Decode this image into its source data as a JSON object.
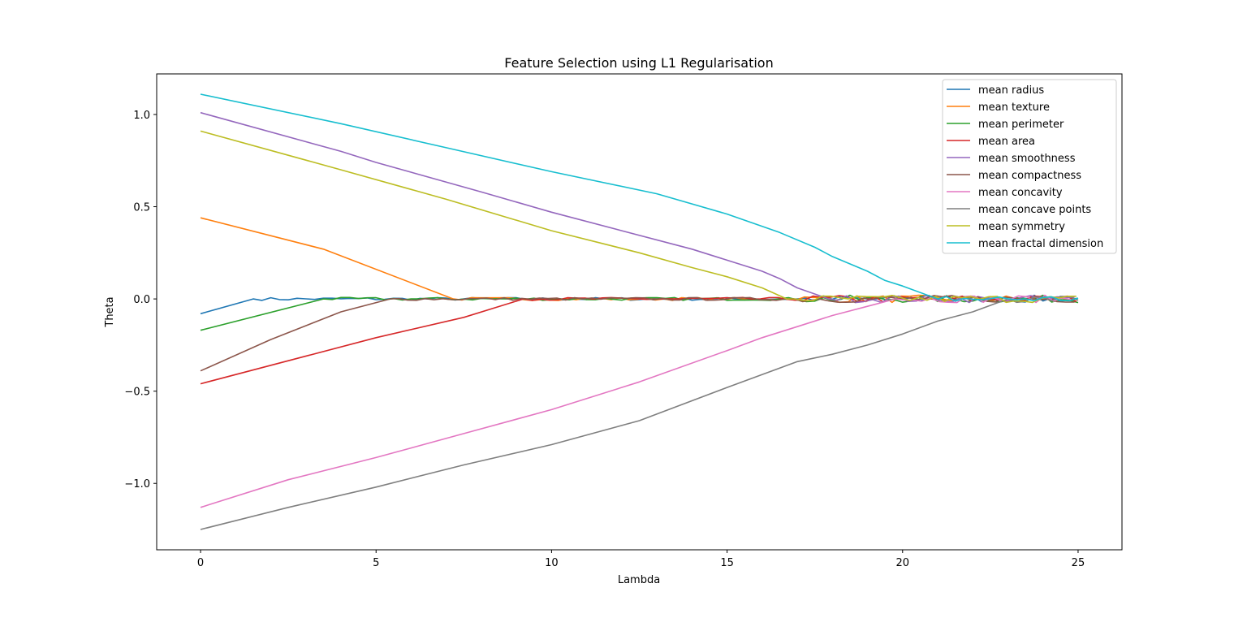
{
  "chart_data": {
    "type": "line",
    "title": "Feature Selection using L1 Regularisation",
    "xlabel": "Lambda",
    "ylabel": "Theta",
    "xlim": [
      -1.25,
      26.25
    ],
    "ylim": [
      -1.36,
      1.22
    ],
    "xticks": [
      0,
      5,
      10,
      15,
      20,
      25
    ],
    "yticks": [
      -1.0,
      -0.5,
      0.0,
      0.5,
      1.0
    ],
    "ytick_labels": [
      "−1.0",
      "−0.5",
      "0.0",
      "0.5",
      "1.0"
    ],
    "grid": false,
    "legend_position": "top-right",
    "noise_start": [
      1.5,
      7.2,
      3.5,
      9.2,
      17.9,
      5.4,
      19.8,
      23.0,
      16.7,
      21.0
    ],
    "series": [
      {
        "name": "mean radius",
        "color": "#1f77b4",
        "points": [
          [
            0,
            -0.08
          ],
          [
            1.5,
            0.0
          ]
        ]
      },
      {
        "name": "mean texture",
        "color": "#ff7f0e",
        "points": [
          [
            0,
            0.44
          ],
          [
            3.5,
            0.27
          ],
          [
            7.2,
            0.0
          ]
        ]
      },
      {
        "name": "mean perimeter",
        "color": "#2ca02c",
        "points": [
          [
            0,
            -0.17
          ],
          [
            3.5,
            0.0
          ]
        ]
      },
      {
        "name": "mean area",
        "color": "#d62728",
        "points": [
          [
            0,
            -0.46
          ],
          [
            5,
            -0.21
          ],
          [
            7.5,
            -0.1
          ],
          [
            9.2,
            0.0
          ]
        ]
      },
      {
        "name": "mean smoothness",
        "color": "#9467bd",
        "points": [
          [
            0,
            1.01
          ],
          [
            4,
            0.8
          ],
          [
            5,
            0.74
          ],
          [
            8,
            0.58
          ],
          [
            10,
            0.47
          ],
          [
            12,
            0.37
          ],
          [
            14,
            0.27
          ],
          [
            15,
            0.21
          ],
          [
            16,
            0.15
          ],
          [
            16.5,
            0.11
          ],
          [
            17,
            0.06
          ],
          [
            17.9,
            0.0
          ]
        ]
      },
      {
        "name": "mean compactness",
        "color": "#8c564b",
        "points": [
          [
            0,
            -0.39
          ],
          [
            2,
            -0.22
          ],
          [
            4,
            -0.07
          ],
          [
            5.4,
            0.0
          ]
        ]
      },
      {
        "name": "mean concavity",
        "color": "#e377c2",
        "points": [
          [
            0,
            -1.13
          ],
          [
            2.5,
            -0.98
          ],
          [
            5,
            -0.86
          ],
          [
            7.5,
            -0.73
          ],
          [
            10,
            -0.6
          ],
          [
            12.5,
            -0.45
          ],
          [
            15,
            -0.28
          ],
          [
            16,
            -0.21
          ],
          [
            17,
            -0.15
          ],
          [
            18,
            -0.09
          ],
          [
            19,
            -0.04
          ],
          [
            19.8,
            0.0
          ]
        ]
      },
      {
        "name": "mean concave points",
        "color": "#7f7f7f",
        "points": [
          [
            0,
            -1.25
          ],
          [
            2.5,
            -1.13
          ],
          [
            5,
            -1.02
          ],
          [
            7.5,
            -0.9
          ],
          [
            10,
            -0.79
          ],
          [
            12.5,
            -0.66
          ],
          [
            15,
            -0.48
          ],
          [
            17,
            -0.34
          ],
          [
            18,
            -0.3
          ],
          [
            19,
            -0.25
          ],
          [
            20,
            -0.19
          ],
          [
            21,
            -0.12
          ],
          [
            22,
            -0.07
          ],
          [
            23,
            0.0
          ]
        ]
      },
      {
        "name": "mean symmetry",
        "color": "#bcbd22",
        "points": [
          [
            0,
            0.91
          ],
          [
            4,
            0.7
          ],
          [
            7,
            0.54
          ],
          [
            10,
            0.37
          ],
          [
            12.5,
            0.25
          ],
          [
            14,
            0.17
          ],
          [
            15,
            0.12
          ],
          [
            16,
            0.06
          ],
          [
            16.7,
            0.0
          ]
        ]
      },
      {
        "name": "mean fractal dimension",
        "color": "#17becf",
        "points": [
          [
            0,
            1.11
          ],
          [
            4,
            0.95
          ],
          [
            7,
            0.82
          ],
          [
            10,
            0.69
          ],
          [
            13,
            0.57
          ],
          [
            15,
            0.46
          ],
          [
            16.5,
            0.36
          ],
          [
            17.5,
            0.28
          ],
          [
            18,
            0.23
          ],
          [
            19,
            0.15
          ],
          [
            19.5,
            0.1
          ],
          [
            20,
            0.07
          ],
          [
            21,
            0.0
          ]
        ]
      }
    ]
  }
}
